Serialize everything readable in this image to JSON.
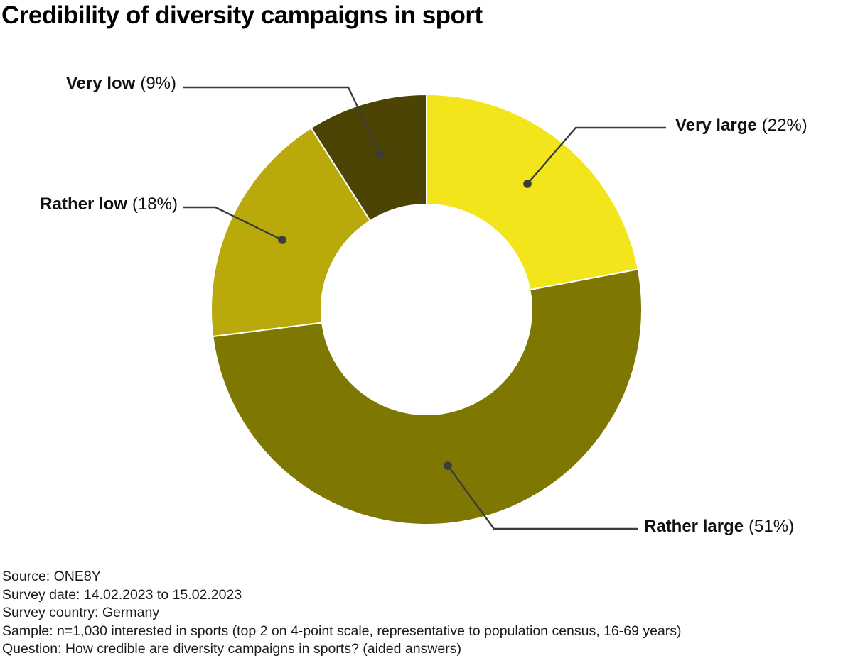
{
  "title": "Credibility of diversity campaigns in sport",
  "chart_data": {
    "type": "pie",
    "subtype": "donut",
    "title": "Credibility of diversity campaigns in sport",
    "unit": "%",
    "direction": "clockwise",
    "start_angle_deg": 0,
    "donut_hole_ratio": 0.49,
    "separator_color": "#ffffff",
    "leader_color": "#3c3c3c",
    "segments": [
      {
        "label": "Very large",
        "value": 22,
        "value_label": "(22%)",
        "color": "#f3e51c"
      },
      {
        "label": "Rather large",
        "value": 51,
        "value_label": "(51%)",
        "color": "#7e7802"
      },
      {
        "label": "Rather low",
        "value": 18,
        "value_label": "(18%)",
        "color": "#b9a90a"
      },
      {
        "label": "Very low",
        "value": 9,
        "value_label": "(9%)",
        "color": "#4c4405"
      }
    ]
  },
  "footnotes": {
    "lines": [
      "Source: ONE8Y",
      "Survey date: 14.02.2023 to 15.02.2023",
      "Survey country: Germany",
      "Sample: n=1,030 interested in sports (top 2 on 4-point scale, representative to population census, 16-69 years)",
      "Question: How credible are diversity campaigns in sports? (aided answers)"
    ]
  }
}
